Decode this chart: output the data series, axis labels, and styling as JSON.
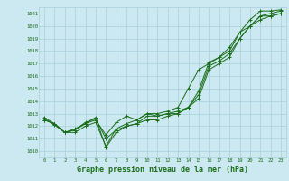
{
  "title": "Graphe pression niveau de la mer (hPa)",
  "bg_color": "#cce8f0",
  "grid_color": "#a8d0dc",
  "line_color": "#1a6e1a",
  "xmin": -0.5,
  "xmax": 23.5,
  "ymin": 1009.5,
  "ymax": 1021.5,
  "yticks": [
    1010,
    1011,
    1012,
    1013,
    1014,
    1015,
    1016,
    1017,
    1018,
    1019,
    1020,
    1021
  ],
  "xticks": [
    0,
    1,
    2,
    3,
    4,
    5,
    6,
    7,
    8,
    9,
    10,
    11,
    12,
    13,
    14,
    15,
    16,
    17,
    18,
    19,
    20,
    21,
    22,
    23
  ],
  "series": [
    [
      1012.5,
      1012.2,
      1011.5,
      1011.7,
      1012.3,
      1012.6,
      1011.0,
      1011.7,
      1012.0,
      1012.2,
      1012.5,
      1012.5,
      1012.8,
      1013.0,
      1013.5,
      1014.5,
      1016.8,
      1017.2,
      1017.8,
      1019.0,
      1020.0,
      1020.8,
      1020.8,
      1021.0
    ],
    [
      1012.5,
      1012.2,
      1011.5,
      1011.7,
      1012.2,
      1012.5,
      1011.3,
      1012.3,
      1012.8,
      1012.5,
      1013.0,
      1013.0,
      1013.2,
      1013.5,
      1015.0,
      1016.5,
      1017.0,
      1017.5,
      1018.3,
      1019.5,
      1020.5,
      1021.2,
      1021.2,
      1021.3
    ],
    [
      1012.7,
      1012.2,
      1011.5,
      1011.8,
      1012.2,
      1012.7,
      1010.3,
      1011.5,
      1012.0,
      1012.2,
      1012.8,
      1012.8,
      1013.0,
      1013.0,
      1013.5,
      1014.2,
      1016.5,
      1017.0,
      1017.5,
      1019.0,
      1020.0,
      1020.5,
      1020.8,
      1021.0
    ],
    [
      1012.6,
      1012.1,
      1011.5,
      1011.5,
      1012.0,
      1012.3,
      1010.4,
      1011.8,
      1012.2,
      1012.5,
      1013.0,
      1012.8,
      1013.0,
      1013.2,
      1013.5,
      1014.8,
      1017.1,
      1017.5,
      1018.0,
      1019.5,
      1020.0,
      1020.8,
      1021.0,
      1021.2
    ]
  ],
  "title_fontsize": 6,
  "tick_fontsize": 4,
  "figwidth": 3.2,
  "figheight": 2.0,
  "dpi": 100
}
